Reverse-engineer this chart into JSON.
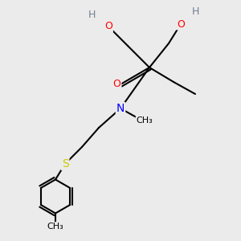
{
  "bg_color": "#ebebeb",
  "atom_colors": {
    "C": "#000000",
    "H": "#708090",
    "O": "#ff0000",
    "N": "#0000ff",
    "S": "#cccc00"
  },
  "bond_color": "#000000",
  "bond_width": 1.5,
  "figsize": [
    3.0,
    3.0
  ],
  "dpi": 100,
  "xlim": [
    0,
    10
  ],
  "ylim": [
    0,
    10
  ]
}
